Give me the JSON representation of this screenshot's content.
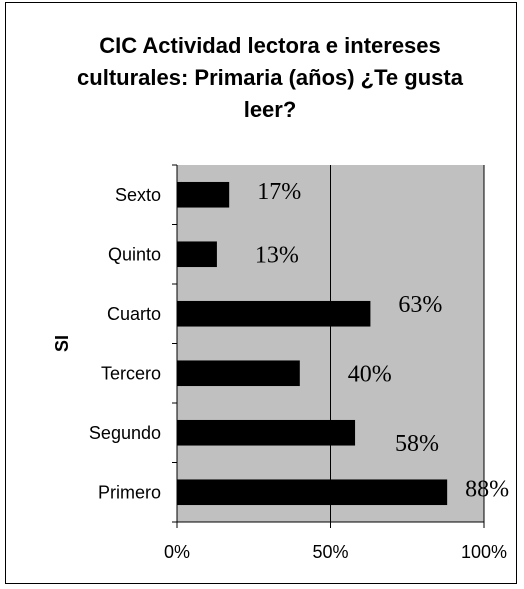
{
  "chart_data": {
    "type": "bar",
    "orientation": "horizontal",
    "title": "CIC Actividad lectora e intereses culturales: Primaria (años) ¿Te gusta leer?",
    "ylabel": "SI",
    "xlabel": "",
    "categories": [
      "Sexto",
      "Quinto",
      "Cuarto",
      "Tercero",
      "Segundo",
      "Primero"
    ],
    "values": [
      17,
      13,
      63,
      40,
      58,
      88
    ],
    "data_labels": [
      "17%",
      "13%",
      "63%",
      "40%",
      "58%",
      "88%"
    ],
    "x_ticks": [
      "0%",
      "50%",
      "100%"
    ],
    "xlim": [
      0,
      100
    ],
    "grid": "vertical at 50%",
    "colors": {
      "bar": "#000000",
      "plot_bg": "#c0c0c0"
    }
  }
}
